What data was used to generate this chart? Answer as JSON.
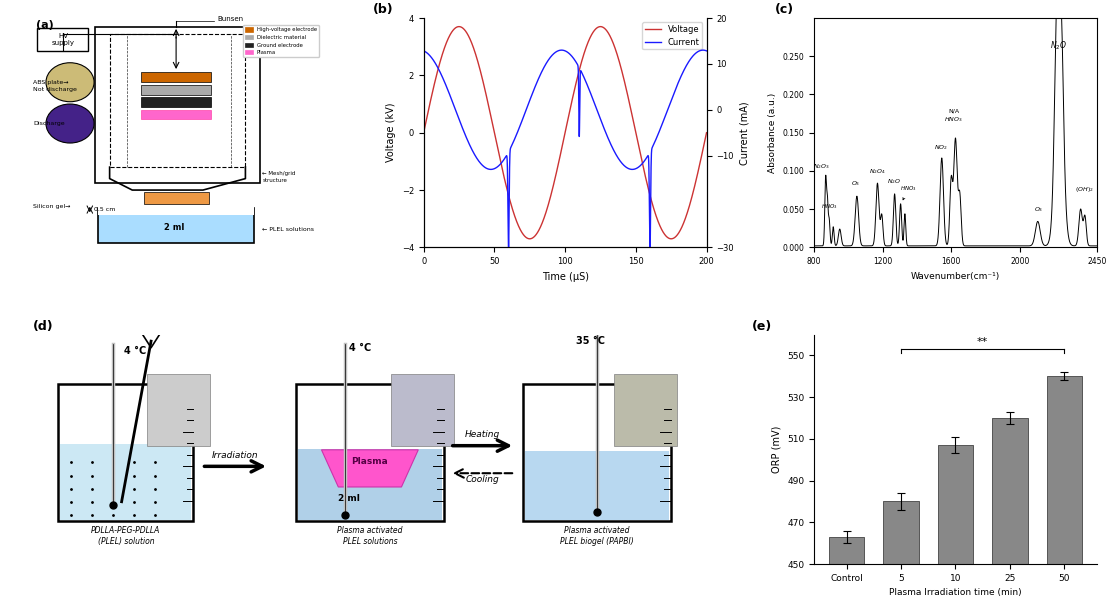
{
  "panel_labels": [
    "(a)",
    "(b)",
    "(c)",
    "(d)",
    "(e)"
  ],
  "panel_b": {
    "xlabel": "Time (μS)",
    "ylabel_left": "Voltage (kV)",
    "ylabel_right": "Current (mA)",
    "xlim": [
      0,
      200
    ],
    "ylim_left": [
      -4,
      4
    ],
    "ylim_right": [
      -30,
      20
    ],
    "xticks": [
      0,
      50,
      100,
      150,
      200
    ],
    "yticks_left": [
      -4,
      -2,
      0,
      2,
      4
    ],
    "yticks_right": [
      -30,
      -10,
      0,
      10,
      20
    ],
    "voltage_color": "#cc3333",
    "current_color": "#1a1aff",
    "legend_voltage": "Voltage",
    "legend_current": "Current",
    "period": 100
  },
  "panel_c": {
    "xlabel": "Wavenumber(cm⁻¹)",
    "ylabel": "Absorbance (a.u.)",
    "xlim": [
      800,
      2450
    ],
    "ylim": [
      0.0,
      0.3
    ],
    "ytick_vals": [
      0.0,
      0.05,
      0.1,
      0.15,
      0.2,
      0.25
    ],
    "ytick_labels": [
      "0.000",
      "0.050",
      "0.100",
      "0.150",
      "0.200",
      "0.250"
    ],
    "xticks": [
      800,
      1200,
      1600,
      2000,
      2450
    ]
  },
  "panel_e": {
    "categories": [
      "Control",
      "5",
      "10",
      "25",
      "50"
    ],
    "values": [
      463,
      480,
      507,
      520,
      540
    ],
    "errors": [
      3,
      4,
      4,
      3,
      2
    ],
    "bar_color": "#888888",
    "xlabel": "Plasma Irradiation time (min)",
    "ylabel": "ORP (mV)",
    "ylim": [
      450,
      560
    ],
    "yticks": [
      450,
      470,
      490,
      510,
      530,
      550
    ],
    "significance": "**"
  },
  "panel_a": {
    "legend_colors": [
      "#cc6600",
      "#aaaaaa",
      "#222222",
      "#ff66cc"
    ],
    "legend_labels": [
      "High-voltage electrode",
      "Dielectric material",
      "Ground electrode",
      "Plasma"
    ]
  },
  "background_color": "#ffffff",
  "figure_size": [
    11.08,
    6.0
  ]
}
